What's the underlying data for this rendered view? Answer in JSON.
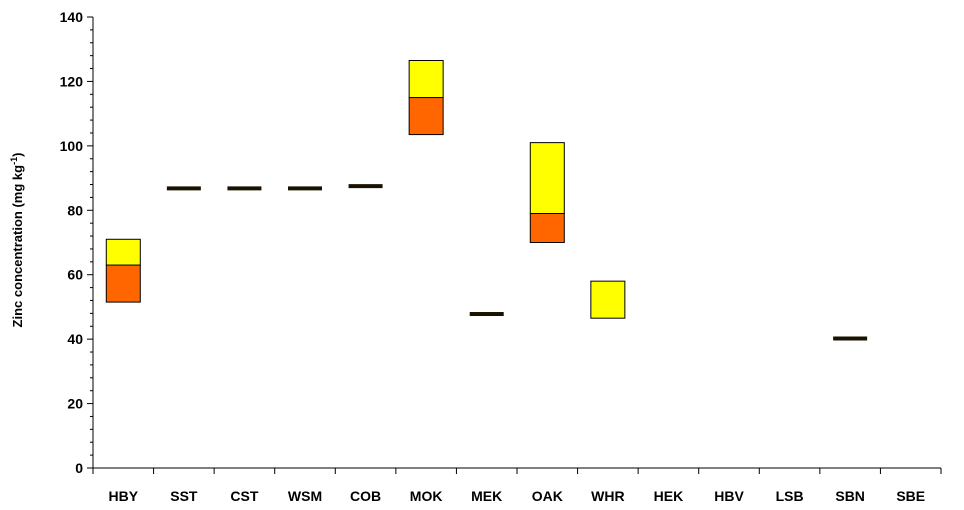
{
  "chart_data": {
    "type": "bar",
    "title": "",
    "xlabel": "",
    "ylabel": "Zinc concentration (mg kg",
    "ylabel_sup": "-1",
    "ylabel_close": ")",
    "ylim": [
      0,
      140
    ],
    "yticks": [
      0,
      20,
      40,
      60,
      80,
      100,
      120,
      140
    ],
    "grid": false,
    "legend": "none",
    "categories": [
      "HBY",
      "SST",
      "CST",
      "WSM",
      "COB",
      "MOK",
      "MEK",
      "OAK",
      "WHR",
      "HEK",
      "HBV",
      "LSB",
      "SBN",
      "SBE"
    ],
    "segments": [
      {
        "category": "HBY",
        "low": 51.5,
        "mid": 63,
        "high": 71
      },
      {
        "category": "SST",
        "low": 86.8,
        "mid": 86.8,
        "high": 86.8
      },
      {
        "category": "CST",
        "low": 86.8,
        "mid": 86.8,
        "high": 86.8
      },
      {
        "category": "WSM",
        "low": 86.8,
        "mid": 86.8,
        "high": 86.8
      },
      {
        "category": "COB",
        "low": 87.5,
        "mid": 87.5,
        "high": 87.5
      },
      {
        "category": "MOK",
        "low": 103.5,
        "mid": 115,
        "high": 126.5
      },
      {
        "category": "MEK",
        "low": 47.8,
        "mid": 47.8,
        "high": 47.8
      },
      {
        "category": "OAK",
        "low": 70,
        "mid": 79,
        "high": 101
      },
      {
        "category": "WHR",
        "low": 46.5,
        "mid": 46.5,
        "high": 58
      },
      {
        "category": "HEK",
        "low": null,
        "mid": null,
        "high": null
      },
      {
        "category": "HBV",
        "low": null,
        "mid": null,
        "high": null
      },
      {
        "category": "LSB",
        "low": null,
        "mid": null,
        "high": null
      },
      {
        "category": "SBN",
        "low": 40.2,
        "mid": 40.2,
        "high": 40.2
      },
      {
        "category": "SBE",
        "low": null,
        "mid": null,
        "high": null
      }
    ],
    "colors": {
      "lower": "#ff6600",
      "upper": "#ffff00",
      "edge": "#000000",
      "marker": "#1a1200"
    }
  }
}
